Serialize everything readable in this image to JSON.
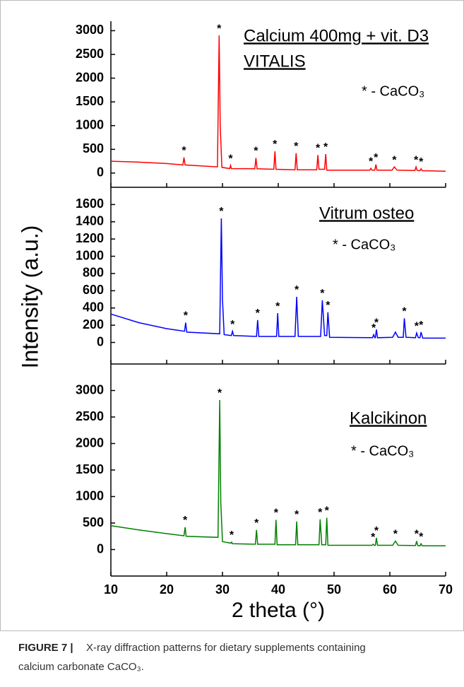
{
  "chart_data": [
    {
      "type": "line",
      "title_lines": [
        "Calcium 400mg + vit. D3",
        "VITALIS"
      ],
      "note": "* - CaCO₃",
      "marker": "*",
      "x": [
        10,
        15,
        20,
        22.9,
        23.1,
        23.3,
        29.1,
        29.4,
        29.6,
        29.9,
        31.3,
        31.45,
        31.6,
        35.8,
        36.0,
        36.2,
        39.2,
        39.4,
        39.6,
        43.0,
        43.2,
        43.4,
        46.9,
        47.1,
        47.3,
        48.3,
        48.5,
        48.7,
        56.4,
        56.6,
        56.8,
        57.3,
        57.5,
        57.7,
        60.4,
        60.8,
        61.3,
        64.5,
        64.7,
        64.9,
        65.4,
        65.6,
        65.8,
        70
      ],
      "series": [
        {
          "color": "#ff0000",
          "values": [
            250,
            230,
            200,
            170,
            330,
            170,
            130,
            2900,
            1000,
            120,
            95,
            160,
            95,
            90,
            320,
            90,
            80,
            460,
            80,
            70,
            420,
            70,
            70,
            380,
            80,
            80,
            400,
            60,
            60,
            100,
            60,
            60,
            180,
            60,
            60,
            130,
            60,
            55,
            130,
            55,
            50,
            90,
            50,
            40
          ]
        }
      ],
      "marked_peaks": [
        23.1,
        29.4,
        31.45,
        36.0,
        39.4,
        43.2,
        47.1,
        48.5,
        56.6,
        57.5,
        60.8,
        64.7,
        65.6
      ],
      "xlim": [
        10,
        70
      ],
      "xticks": [
        10,
        20,
        30,
        40,
        50,
        60,
        70
      ],
      "ylim": [
        -300,
        3200
      ],
      "yticks": [
        0,
        500,
        1000,
        1500,
        2000,
        2500,
        3000
      ]
    },
    {
      "type": "line",
      "title_lines": [
        "Vitrum osteo"
      ],
      "note": "* - CaCO₃",
      "marker": "*",
      "y_label": "Intensity (a.u.)",
      "x": [
        10,
        15,
        20,
        23.2,
        23.4,
        23.6,
        29.5,
        29.8,
        30.0,
        30.3,
        31.6,
        31.8,
        32.0,
        36.1,
        36.3,
        36.5,
        39.7,
        39.9,
        40.1,
        43.0,
        43.3,
        43.6,
        47.6,
        47.9,
        48.3,
        48.7,
        48.9,
        49.2,
        56.9,
        57.1,
        57.3,
        57.4,
        57.6,
        57.8,
        60.5,
        61.0,
        61.5,
        62.4,
        62.6,
        62.9,
        64.6,
        64.8,
        65.1,
        65.4,
        65.6,
        65.9,
        70
      ],
      "series": [
        {
          "color": "#0000ff",
          "values": [
            330,
            230,
            160,
            130,
            230,
            120,
            100,
            1440,
            500,
            90,
            80,
            130,
            80,
            70,
            260,
            70,
            70,
            340,
            70,
            70,
            530,
            70,
            70,
            490,
            80,
            80,
            350,
            60,
            55,
            90,
            55,
            55,
            150,
            55,
            60,
            120,
            60,
            60,
            280,
            60,
            55,
            110,
            55,
            55,
            120,
            50,
            50
          ]
        }
      ],
      "marked_peaks": [
        23.4,
        29.8,
        31.8,
        36.3,
        39.9,
        43.3,
        47.9,
        48.9,
        57.1,
        57.6,
        62.6,
        64.8,
        65.6
      ],
      "xlim": [
        10,
        70
      ],
      "xticks": [
        10,
        20,
        30,
        40,
        50,
        60,
        70
      ],
      "ylim": [
        -250,
        1800
      ],
      "yticks": [
        0,
        200,
        400,
        600,
        800,
        1000,
        1200,
        1400,
        1600
      ]
    },
    {
      "type": "line",
      "title_lines": [
        "Kalcikinon"
      ],
      "note": "* - CaCO₃",
      "marker": "*",
      "x_label": "2 theta (°)",
      "x": [
        10,
        15,
        20,
        23.1,
        23.3,
        23.5,
        29.2,
        29.5,
        29.7,
        30.0,
        31.5,
        31.65,
        31.8,
        35.9,
        36.1,
        36.3,
        39.4,
        39.6,
        39.8,
        43.1,
        43.3,
        43.5,
        47.3,
        47.5,
        47.8,
        48.5,
        48.7,
        48.9,
        56.8,
        57.0,
        57.2,
        57.4,
        57.6,
        57.8,
        60.5,
        61.0,
        61.5,
        64.6,
        64.8,
        65.0,
        65.4,
        65.6,
        65.8,
        70
      ],
      "series": [
        {
          "color": "#008000",
          "values": [
            450,
            370,
            300,
            260,
            420,
            250,
            230,
            2820,
            900,
            150,
            120,
            140,
            110,
            100,
            370,
            100,
            100,
            560,
            90,
            90,
            530,
            90,
            90,
            570,
            90,
            90,
            600,
            80,
            80,
            100,
            80,
            80,
            220,
            80,
            80,
            160,
            80,
            75,
            160,
            75,
            70,
            110,
            70,
            70
          ]
        }
      ],
      "marked_peaks": [
        23.3,
        29.5,
        31.65,
        36.1,
        39.6,
        43.3,
        47.5,
        48.7,
        57.0,
        57.6,
        61.0,
        64.8,
        65.6
      ],
      "xlim": [
        10,
        70
      ],
      "xticks": [
        10,
        20,
        30,
        40,
        50,
        60,
        70
      ],
      "ylim": [
        -500,
        3500
      ],
      "yticks": [
        0,
        500,
        1000,
        1500,
        2000,
        2500,
        3000
      ]
    }
  ],
  "caption": {
    "label": "FIGURE 7 |",
    "text_lines": [
      "X-ray diffraction patterns for dietary supplements containing",
      "calcium carbonate CaCO₃."
    ]
  }
}
